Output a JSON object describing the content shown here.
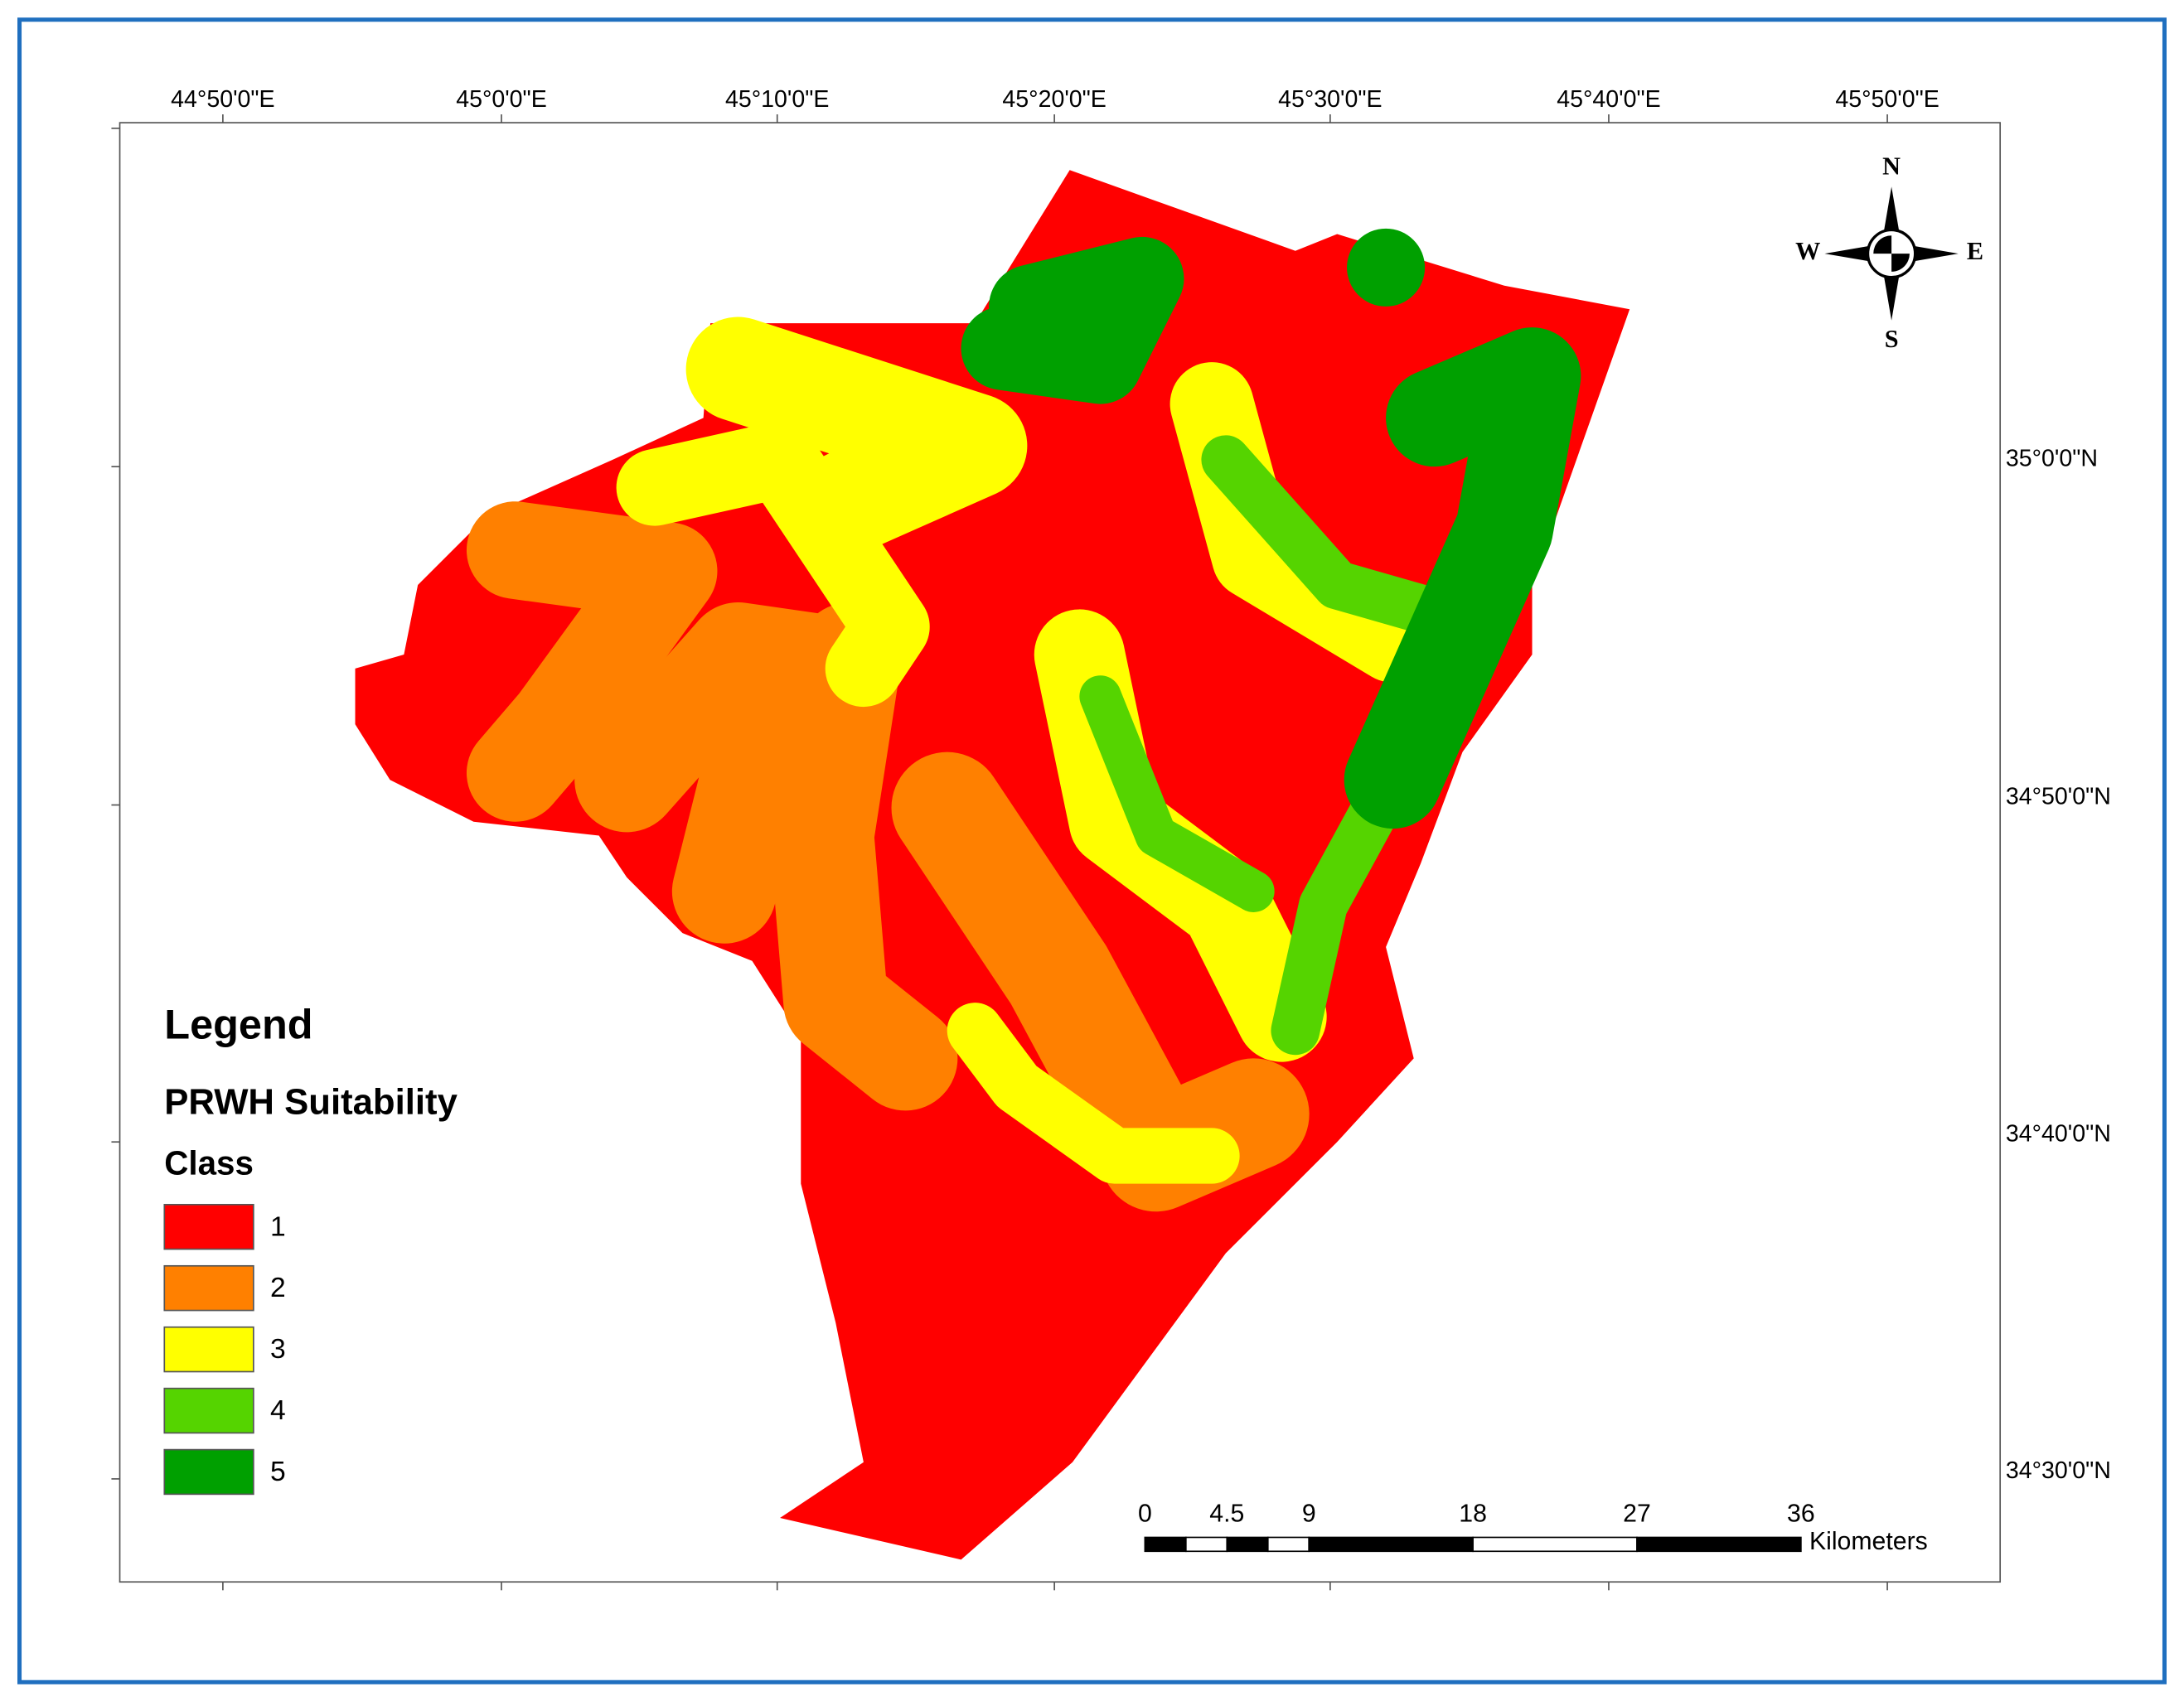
{
  "map": {
    "longitude_labels": [
      "44°50'0\"E",
      "45°0'0\"E",
      "45°10'0\"E",
      "45°20'0\"E",
      "45°30'0\"E",
      "45°40'0\"E",
      "45°50'0\"E"
    ],
    "latitude_labels": [
      "35°0'0\"N",
      "34°50'0\"N",
      "34°40'0\"N",
      "34°30'0\"N"
    ],
    "compass": {
      "north": "N",
      "south": "S",
      "east": "E",
      "west": "W"
    },
    "legend": {
      "title": "Legend",
      "subtitle": "PRWH Suitability",
      "heading": "Class",
      "classes": [
        {
          "label": "1",
          "color": "#ff0000"
        },
        {
          "label": "2",
          "color": "#ff8000"
        },
        {
          "label": "3",
          "color": "#ffff00"
        },
        {
          "label": "4",
          "color": "#55d400"
        },
        {
          "label": "5",
          "color": "#00a000"
        }
      ]
    },
    "scale_bar": {
      "ticks": [
        0,
        4.5,
        9,
        18,
        27,
        36
      ],
      "unit": "Kilometers"
    }
  }
}
